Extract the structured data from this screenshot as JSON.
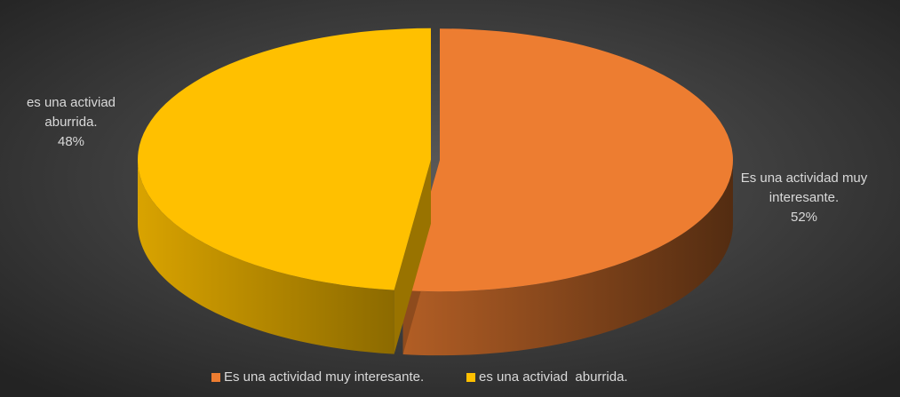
{
  "chart_data": {
    "type": "pie",
    "categories": [
      "Es una actividad muy interesante.",
      "es una activiad  aburrida."
    ],
    "values": [
      52,
      48
    ],
    "value_labels": [
      "52%",
      "48%"
    ],
    "colors": [
      "#ed7d31",
      "#ffc000"
    ],
    "legend": "bottom"
  }
}
